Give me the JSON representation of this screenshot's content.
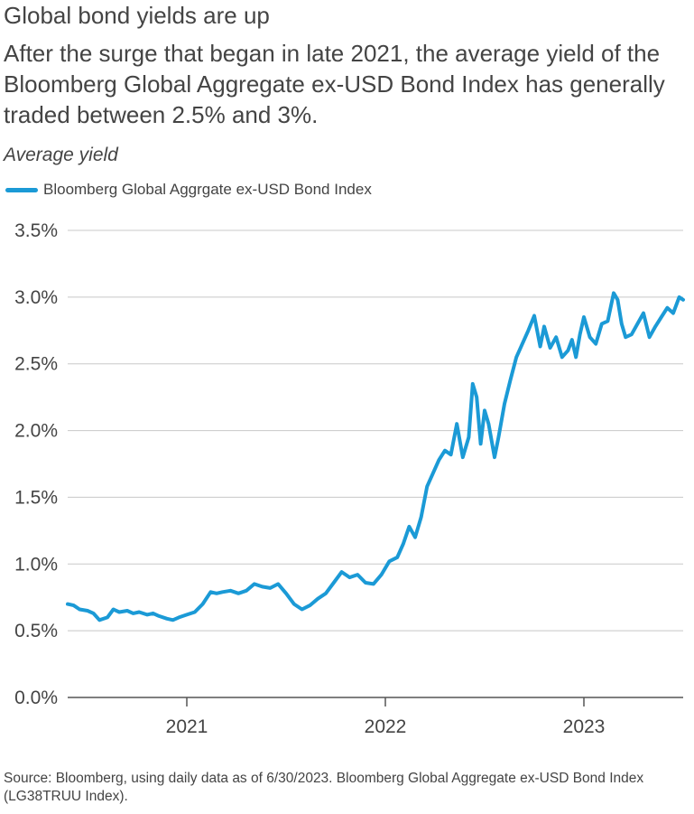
{
  "chart_data": {
    "type": "line",
    "title": "Global bond yields are up",
    "subtitle": "After the surge that began in late 2021, the average yield of the Bloomberg Global Aggregate ex-USD Bond Index has generally traded between 2.5% and 3%.",
    "ylabel": "Average yield",
    "xlabel": "",
    "ylim": [
      0.0,
      3.5
    ],
    "yticks": [
      0.0,
      0.5,
      1.0,
      1.5,
      2.0,
      2.5,
      3.0,
      3.5
    ],
    "ytick_labels": [
      "0.0%",
      "0.5%",
      "1.0%",
      "1.5%",
      "2.0%",
      "2.5%",
      "3.0%",
      "3.5%"
    ],
    "xlim": [
      2020.4,
      2023.5
    ],
    "xticks": [
      2021.0,
      2022.0,
      2023.0
    ],
    "xtick_labels": [
      "2021",
      "2022",
      "2023"
    ],
    "grid": "horizontal",
    "legend_position": "top-left",
    "series": [
      {
        "name": "Bloomberg Global Aggrgate ex-USD Bond Index",
        "color": "#1b9ad6",
        "x": [
          2020.4,
          2020.43,
          2020.46,
          2020.5,
          2020.53,
          2020.56,
          2020.6,
          2020.63,
          2020.66,
          2020.7,
          2020.73,
          2020.76,
          2020.8,
          2020.83,
          2020.86,
          2020.9,
          2020.93,
          2020.96,
          2021.0,
          2021.04,
          2021.08,
          2021.12,
          2021.15,
          2021.18,
          2021.22,
          2021.26,
          2021.3,
          2021.34,
          2021.38,
          2021.42,
          2021.46,
          2021.5,
          2021.54,
          2021.58,
          2021.62,
          2021.66,
          2021.7,
          2021.74,
          2021.78,
          2021.82,
          2021.86,
          2021.9,
          2021.94,
          2021.98,
          2022.02,
          2022.06,
          2022.09,
          2022.12,
          2022.15,
          2022.18,
          2022.21,
          2022.24,
          2022.27,
          2022.3,
          2022.33,
          2022.36,
          2022.39,
          2022.42,
          2022.44,
          2022.46,
          2022.48,
          2022.5,
          2022.52,
          2022.55,
          2022.57,
          2022.6,
          2022.63,
          2022.66,
          2022.69,
          2022.72,
          2022.75,
          2022.78,
          2022.8,
          2022.83,
          2022.86,
          2022.89,
          2022.92,
          2022.94,
          2022.96,
          2022.98,
          2023.0,
          2023.03,
          2023.06,
          2023.09,
          2023.12,
          2023.15,
          2023.17,
          2023.19,
          2023.21,
          2023.24,
          2023.27,
          2023.3,
          2023.33,
          2023.36,
          2023.39,
          2023.42,
          2023.45,
          2023.48,
          2023.5
        ],
        "values": [
          0.7,
          0.69,
          0.66,
          0.65,
          0.63,
          0.58,
          0.6,
          0.66,
          0.64,
          0.65,
          0.63,
          0.64,
          0.62,
          0.63,
          0.61,
          0.59,
          0.58,
          0.6,
          0.62,
          0.64,
          0.7,
          0.79,
          0.78,
          0.79,
          0.8,
          0.78,
          0.8,
          0.85,
          0.83,
          0.82,
          0.85,
          0.78,
          0.7,
          0.66,
          0.69,
          0.74,
          0.78,
          0.86,
          0.94,
          0.9,
          0.92,
          0.86,
          0.85,
          0.92,
          1.02,
          1.05,
          1.15,
          1.28,
          1.2,
          1.35,
          1.58,
          1.68,
          1.78,
          1.85,
          1.82,
          2.05,
          1.8,
          1.95,
          2.35,
          2.25,
          1.9,
          2.15,
          2.05,
          1.8,
          1.95,
          2.2,
          2.38,
          2.55,
          2.65,
          2.75,
          2.86,
          2.63,
          2.78,
          2.62,
          2.7,
          2.55,
          2.6,
          2.68,
          2.55,
          2.72,
          2.85,
          2.7,
          2.65,
          2.8,
          2.82,
          3.03,
          2.98,
          2.8,
          2.7,
          2.72,
          2.8,
          2.88,
          2.7,
          2.78,
          2.85,
          2.92,
          2.88,
          3.0,
          2.98
        ]
      }
    ]
  },
  "footer": {
    "source": "Source: Bloomberg, using daily data as of 6/30/2023. Bloomberg Global Aggregate ex-USD Bond Index (LG38TRUU Index)."
  }
}
